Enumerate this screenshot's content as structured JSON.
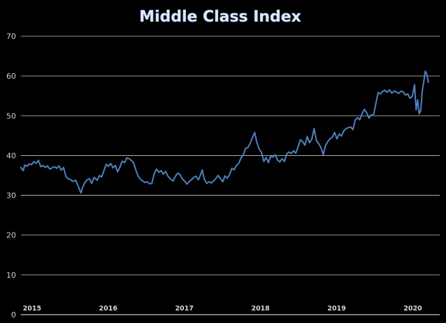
{
  "chart_data": {
    "type": "line",
    "title": "Middle Class Index",
    "xlabel": "",
    "ylabel": "",
    "ylim": [
      0,
      70
    ],
    "yticks": [
      0,
      10,
      20,
      30,
      40,
      50,
      60,
      70
    ],
    "xlim": [
      2015.0,
      2020.5
    ],
    "xticks": [
      {
        "label": "2015",
        "x": 2015.0
      },
      {
        "label": "2016",
        "x": 2016.0
      },
      {
        "label": "2017",
        "x": 2017.0
      },
      {
        "label": "2018",
        "x": 2018.0
      },
      {
        "label": "2019",
        "x": 2019.0
      },
      {
        "label": "2020",
        "x": 2020.0
      }
    ],
    "grid": true,
    "colors": {
      "line": "#4f81bd",
      "grid": "#c8c8c8",
      "background": "#000000"
    },
    "series": [
      {
        "values": [
          [
            2015.0,
            37.0
          ],
          [
            2015.03,
            36.2
          ],
          [
            2015.05,
            37.6
          ],
          [
            2015.08,
            37.3
          ],
          [
            2015.11,
            37.9
          ],
          [
            2015.14,
            37.7
          ],
          [
            2015.17,
            38.5
          ],
          [
            2015.2,
            38.0
          ],
          [
            2015.23,
            38.8
          ],
          [
            2015.26,
            37.2
          ],
          [
            2015.29,
            37.5
          ],
          [
            2015.32,
            37.0
          ],
          [
            2015.35,
            37.4
          ],
          [
            2015.38,
            36.6
          ],
          [
            2015.41,
            36.9
          ],
          [
            2015.44,
            37.2
          ],
          [
            2015.47,
            36.8
          ],
          [
            2015.5,
            37.4
          ],
          [
            2015.53,
            36.3
          ],
          [
            2015.56,
            37.0
          ],
          [
            2015.59,
            34.8
          ],
          [
            2015.62,
            34.1
          ],
          [
            2015.65,
            34.0
          ],
          [
            2015.68,
            33.5
          ],
          [
            2015.72,
            33.8
          ],
          [
            2015.75,
            32.4
          ],
          [
            2015.77,
            31.5
          ],
          [
            2015.79,
            30.6
          ],
          [
            2015.81,
            32.0
          ],
          [
            2015.84,
            33.2
          ],
          [
            2015.87,
            33.9
          ],
          [
            2015.9,
            34.2
          ],
          [
            2015.93,
            33.0
          ],
          [
            2015.96,
            34.5
          ],
          [
            2016.0,
            33.8
          ],
          [
            2016.03,
            35.0
          ],
          [
            2016.06,
            34.6
          ],
          [
            2016.09,
            36.2
          ],
          [
            2016.12,
            37.8
          ],
          [
            2016.15,
            37.3
          ],
          [
            2016.18,
            38.0
          ],
          [
            2016.21,
            36.9
          ],
          [
            2016.24,
            37.5
          ],
          [
            2016.27,
            35.9
          ],
          [
            2016.3,
            37.1
          ],
          [
            2016.33,
            38.6
          ],
          [
            2016.36,
            38.2
          ],
          [
            2016.39,
            39.4
          ],
          [
            2016.42,
            39.2
          ],
          [
            2016.45,
            38.8
          ],
          [
            2016.48,
            38.2
          ],
          [
            2016.51,
            36.3
          ],
          [
            2016.54,
            34.8
          ],
          [
            2016.57,
            34.0
          ],
          [
            2016.6,
            33.6
          ],
          [
            2016.63,
            33.2
          ],
          [
            2016.66,
            33.4
          ],
          [
            2016.69,
            32.9
          ],
          [
            2016.72,
            33.0
          ],
          [
            2016.75,
            35.4
          ],
          [
            2016.78,
            36.6
          ],
          [
            2016.81,
            35.8
          ],
          [
            2016.84,
            36.2
          ],
          [
            2016.87,
            35.3
          ],
          [
            2016.9,
            36.0
          ],
          [
            2016.93,
            34.8
          ],
          [
            2016.96,
            34.2
          ],
          [
            2017.0,
            33.6
          ],
          [
            2017.03,
            34.8
          ],
          [
            2017.06,
            35.6
          ],
          [
            2017.09,
            35.2
          ],
          [
            2017.12,
            34.1
          ],
          [
            2017.15,
            33.6
          ],
          [
            2017.18,
            32.8
          ],
          [
            2017.21,
            33.5
          ],
          [
            2017.24,
            33.9
          ],
          [
            2017.27,
            34.5
          ],
          [
            2017.3,
            34.8
          ],
          [
            2017.33,
            33.9
          ],
          [
            2017.36,
            35.2
          ],
          [
            2017.38,
            36.4
          ],
          [
            2017.41,
            34.0
          ],
          [
            2017.44,
            33.0
          ],
          [
            2017.47,
            33.4
          ],
          [
            2017.5,
            33.1
          ],
          [
            2017.53,
            33.6
          ],
          [
            2017.56,
            34.2
          ],
          [
            2017.59,
            35.0
          ],
          [
            2017.62,
            34.2
          ],
          [
            2017.65,
            33.4
          ],
          [
            2017.68,
            34.9
          ],
          [
            2017.71,
            34.3
          ],
          [
            2017.74,
            35.2
          ],
          [
            2017.77,
            36.8
          ],
          [
            2017.8,
            36.4
          ],
          [
            2017.83,
            37.5
          ],
          [
            2017.86,
            38.0
          ],
          [
            2017.89,
            39.4
          ],
          [
            2017.92,
            40.2
          ],
          [
            2017.95,
            41.8
          ],
          [
            2017.98,
            42.0
          ],
          [
            2018.01,
            43.0
          ],
          [
            2018.04,
            44.5
          ],
          [
            2018.07,
            45.8
          ],
          [
            2018.1,
            43.2
          ],
          [
            2018.13,
            41.6
          ],
          [
            2018.16,
            40.8
          ],
          [
            2018.19,
            38.5
          ],
          [
            2018.22,
            39.5
          ],
          [
            2018.25,
            38.2
          ],
          [
            2018.28,
            39.8
          ],
          [
            2018.31,
            39.6
          ],
          [
            2018.34,
            40.2
          ],
          [
            2018.37,
            38.9
          ],
          [
            2018.4,
            38.4
          ],
          [
            2018.43,
            39.2
          ],
          [
            2018.46,
            38.5
          ],
          [
            2018.49,
            40.4
          ],
          [
            2018.52,
            40.9
          ],
          [
            2018.55,
            40.5
          ],
          [
            2018.58,
            41.2
          ],
          [
            2018.61,
            40.6
          ],
          [
            2018.64,
            42.2
          ],
          [
            2018.67,
            44.0
          ],
          [
            2018.7,
            43.5
          ],
          [
            2018.73,
            42.6
          ],
          [
            2018.76,
            44.8
          ],
          [
            2018.79,
            43.2
          ],
          [
            2018.82,
            44.1
          ],
          [
            2018.85,
            46.8
          ],
          [
            2018.88,
            43.8
          ],
          [
            2018.91,
            43.0
          ],
          [
            2018.94,
            42.0
          ],
          [
            2018.97,
            40.2
          ],
          [
            2019.0,
            42.5
          ],
          [
            2019.03,
            43.5
          ],
          [
            2019.06,
            44.2
          ],
          [
            2019.09,
            44.6
          ],
          [
            2019.12,
            45.8
          ],
          [
            2019.15,
            44.2
          ],
          [
            2019.18,
            45.4
          ],
          [
            2019.21,
            44.9
          ],
          [
            2019.24,
            46.2
          ],
          [
            2019.27,
            46.8
          ],
          [
            2019.3,
            47.0
          ],
          [
            2019.33,
            47.2
          ],
          [
            2019.36,
            46.5
          ],
          [
            2019.39,
            48.9
          ],
          [
            2019.42,
            49.5
          ],
          [
            2019.45,
            49.0
          ],
          [
            2019.48,
            50.5
          ],
          [
            2019.51,
            51.6
          ],
          [
            2019.54,
            50.8
          ],
          [
            2019.57,
            49.4
          ],
          [
            2019.6,
            50.2
          ],
          [
            2019.63,
            50.1
          ],
          [
            2019.66,
            52.9
          ],
          [
            2019.69,
            55.8
          ],
          [
            2019.72,
            55.5
          ],
          [
            2019.75,
            56.1
          ],
          [
            2019.78,
            56.4
          ],
          [
            2019.81,
            55.9
          ],
          [
            2019.84,
            56.5
          ],
          [
            2019.87,
            55.7
          ],
          [
            2019.9,
            56.2
          ],
          [
            2019.93,
            56.0
          ],
          [
            2019.96,
            55.6
          ],
          [
            2019.99,
            56.2
          ],
          [
            2020.02,
            56.0
          ],
          [
            2020.05,
            55.2
          ],
          [
            2020.08,
            55.5
          ],
          [
            2020.11,
            54.4
          ],
          [
            2020.14,
            54.9
          ],
          [
            2020.17,
            57.8
          ],
          [
            2020.19,
            51.5
          ],
          [
            2020.21,
            54.0
          ],
          [
            2020.23,
            50.5
          ],
          [
            2020.25,
            51.2
          ],
          [
            2020.27,
            56.2
          ],
          [
            2020.29,
            58.5
          ],
          [
            2020.31,
            61.2
          ],
          [
            2020.33,
            60.5
          ],
          [
            2020.35,
            58.4
          ]
        ]
      }
    ]
  }
}
